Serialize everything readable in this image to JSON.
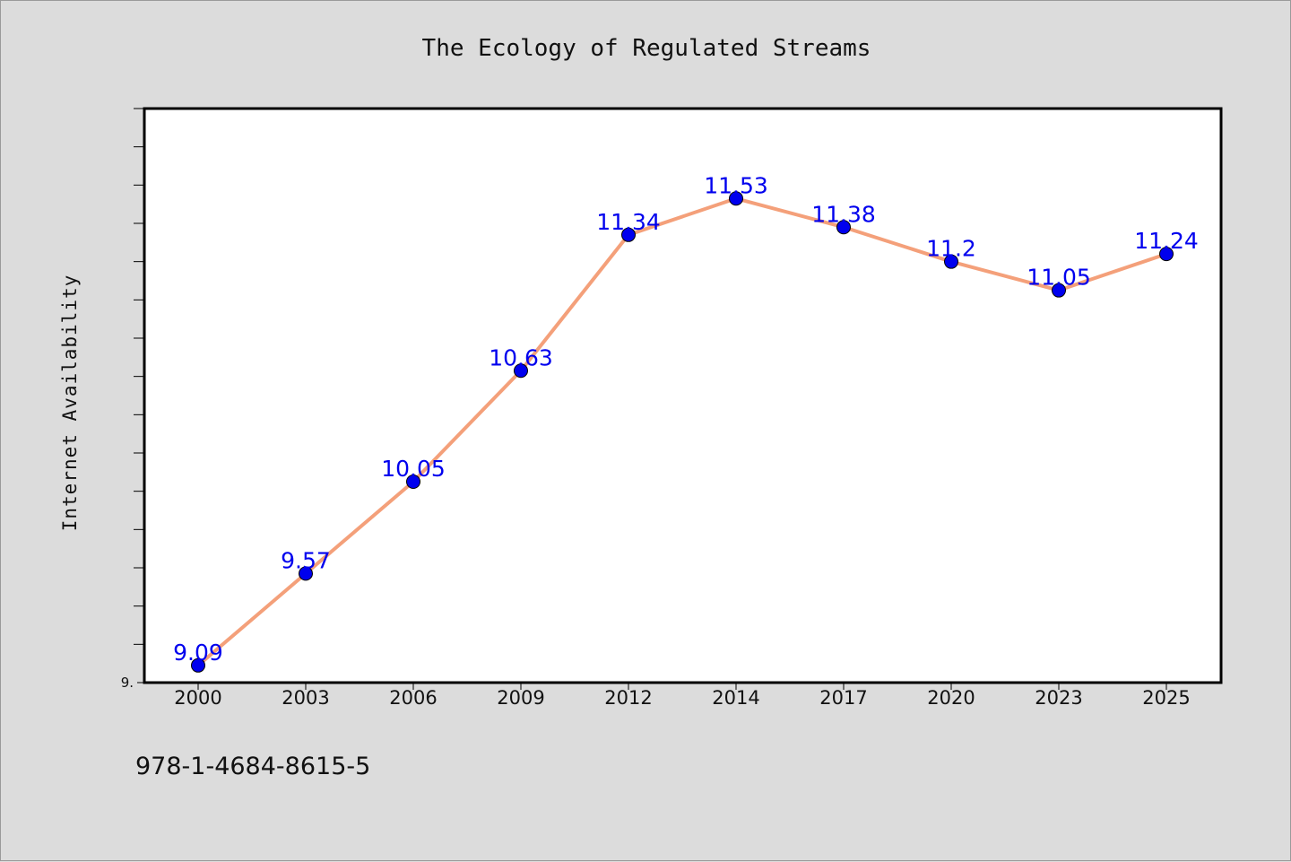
{
  "chart_data": {
    "type": "line",
    "title": "The Ecology of Regulated Streams",
    "xlabel": "",
    "ylabel": "Internet Availability",
    "categories": [
      "2000",
      "2003",
      "2006",
      "2009",
      "2012",
      "2014",
      "2017",
      "2020",
      "2023",
      "2025"
    ],
    "series": [
      {
        "values": [
          9.09,
          9.57,
          10.05,
          10.63,
          11.34,
          11.53,
          11.38,
          11.2,
          11.05,
          11.24
        ],
        "data_labels": [
          "9.09",
          "9.57",
          "10.05",
          "10.63",
          "11.34",
          "11.53",
          "11.38",
          "11.2",
          "11.05",
          "11.24"
        ]
      }
    ],
    "ylim": [
      9.0,
      12.0
    ],
    "y_tick_labels": [
      "9."
    ],
    "grid": false,
    "legend": "none",
    "line_color": "#f4a07a",
    "marker_color": "#0000ee",
    "data_label_color": "#0000ee",
    "plot_background": "#ffffff",
    "figure_background": "#dcdcdc"
  },
  "footer": {
    "isbn": "978-1-4684-8615-5"
  }
}
